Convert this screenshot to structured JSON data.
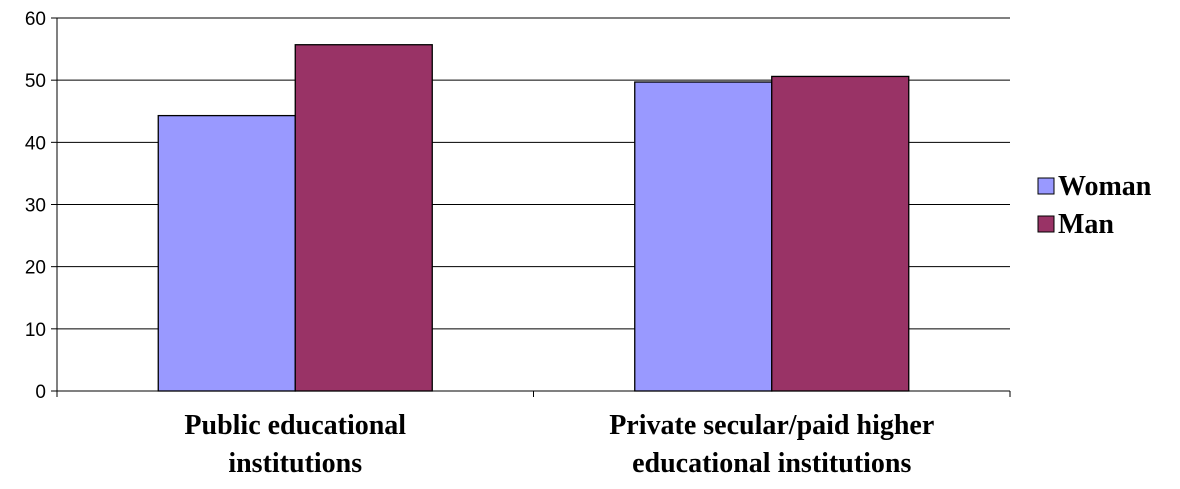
{
  "chart_data": {
    "type": "bar",
    "categories": [
      [
        "Public educational",
        "institutions"
      ],
      [
        "Private secular/paid higher",
        "educational institutions"
      ]
    ],
    "series": [
      {
        "name": "Woman",
        "values": [
          44.3,
          49.7
        ],
        "color": "#9999ff"
      },
      {
        "name": "Man",
        "values": [
          55.7,
          50.6
        ],
        "color": "#993366"
      }
    ],
    "ylim": [
      0,
      60
    ],
    "yticks": [
      0,
      10,
      20,
      30,
      40,
      50,
      60
    ],
    "grid": true,
    "legend_position": "right"
  }
}
